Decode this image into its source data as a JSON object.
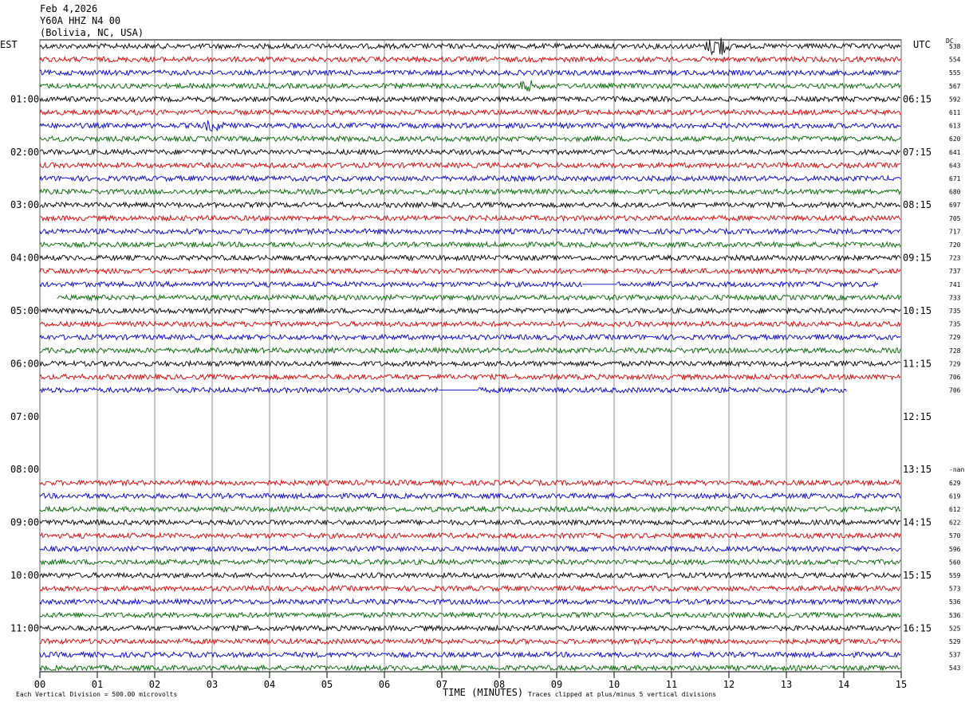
{
  "header": {
    "date": "Feb 4,2026",
    "station": "Y60A HHZ N4 00",
    "location": "(Bolivia, NC, USA)"
  },
  "left_tz": "EST",
  "right_tz": "UTC",
  "dc_label": "DC",
  "footer": {
    "scale": "Each Vertical Division =  500.00 microvolts",
    "xlabel": "TIME (MINUTES)",
    "clip_note": "Traces clipped at plus/minus 5 vertical divisions"
  },
  "colors": [
    "#000000",
    "#dd0000",
    "#0000cc",
    "#006600"
  ],
  "chart_data": {
    "type": "line",
    "title": "Feb 4,2026  Y60A HHZ N4 00  (Bolivia, NC, USA)",
    "xlabel": "TIME (MINUTES)",
    "x_ticks": [
      "00",
      "01",
      "02",
      "03",
      "04",
      "05",
      "06",
      "07",
      "08",
      "09",
      "10",
      "11",
      "12",
      "13",
      "14",
      "15"
    ],
    "xlim": [
      0,
      15
    ],
    "left_time_labels": [
      "01:00",
      "02:00",
      "03:00",
      "04:00",
      "05:00",
      "06:00",
      "07:00",
      "08:00",
      "09:00",
      "10:00",
      "11:00"
    ],
    "right_time_labels": [
      "06:15",
      "07:15",
      "08:15",
      "09:15",
      "10:15",
      "11:15",
      "12:15",
      "13:15",
      "14:15",
      "15:15",
      "16:15"
    ],
    "row_dc_values": [
      "538",
      "554",
      "555",
      "567",
      "592",
      "611",
      "613",
      "620",
      "641",
      "643",
      "671",
      "680",
      "697",
      "705",
      "717",
      "720",
      "723",
      "737",
      "741",
      "733",
      "735",
      "735",
      "729",
      "728",
      "729",
      "706",
      "706",
      "",
      "",
      "",
      "",
      "",
      "-nan",
      "629",
      "619",
      "612",
      "622",
      "570",
      "596",
      "560",
      "559",
      "573",
      "536",
      "536",
      "525",
      "529",
      "537",
      "543"
    ],
    "row_start_min": [
      0,
      0,
      0,
      0,
      0,
      0,
      0,
      0,
      0,
      0,
      0,
      0,
      0,
      0,
      0,
      0,
      0,
      0,
      0,
      0.3,
      0,
      0,
      0,
      0,
      0,
      0,
      0,
      null,
      null,
      null,
      null,
      null,
      null,
      0,
      0,
      0,
      0,
      0,
      0,
      0,
      0,
      0,
      0,
      0,
      0,
      0,
      0,
      0
    ],
    "row_end_min": [
      15,
      15,
      15,
      15,
      15,
      15,
      15,
      15,
      15,
      15,
      15,
      15,
      15,
      15,
      15,
      15,
      15,
      15,
      14.6,
      15,
      15,
      15,
      15,
      15,
      15,
      15,
      14.05,
      null,
      null,
      null,
      null,
      null,
      null,
      15,
      15,
      15,
      15,
      15,
      15,
      15,
      15,
      15,
      15,
      15,
      15,
      15,
      15,
      15
    ],
    "gaps": [
      {
        "row": 18,
        "from_min": 9.45,
        "to_min": 10.05
      },
      {
        "row": 26,
        "from_min": 6.95,
        "to_min": 7.6
      }
    ],
    "events": [
      {
        "row": 0,
        "minute": 11.8,
        "amplitude": "large"
      },
      {
        "row": 3,
        "minute": 8.5,
        "amplitude": "medium"
      },
      {
        "row": 6,
        "minute": 3.0,
        "amplitude": "medium"
      }
    ]
  }
}
